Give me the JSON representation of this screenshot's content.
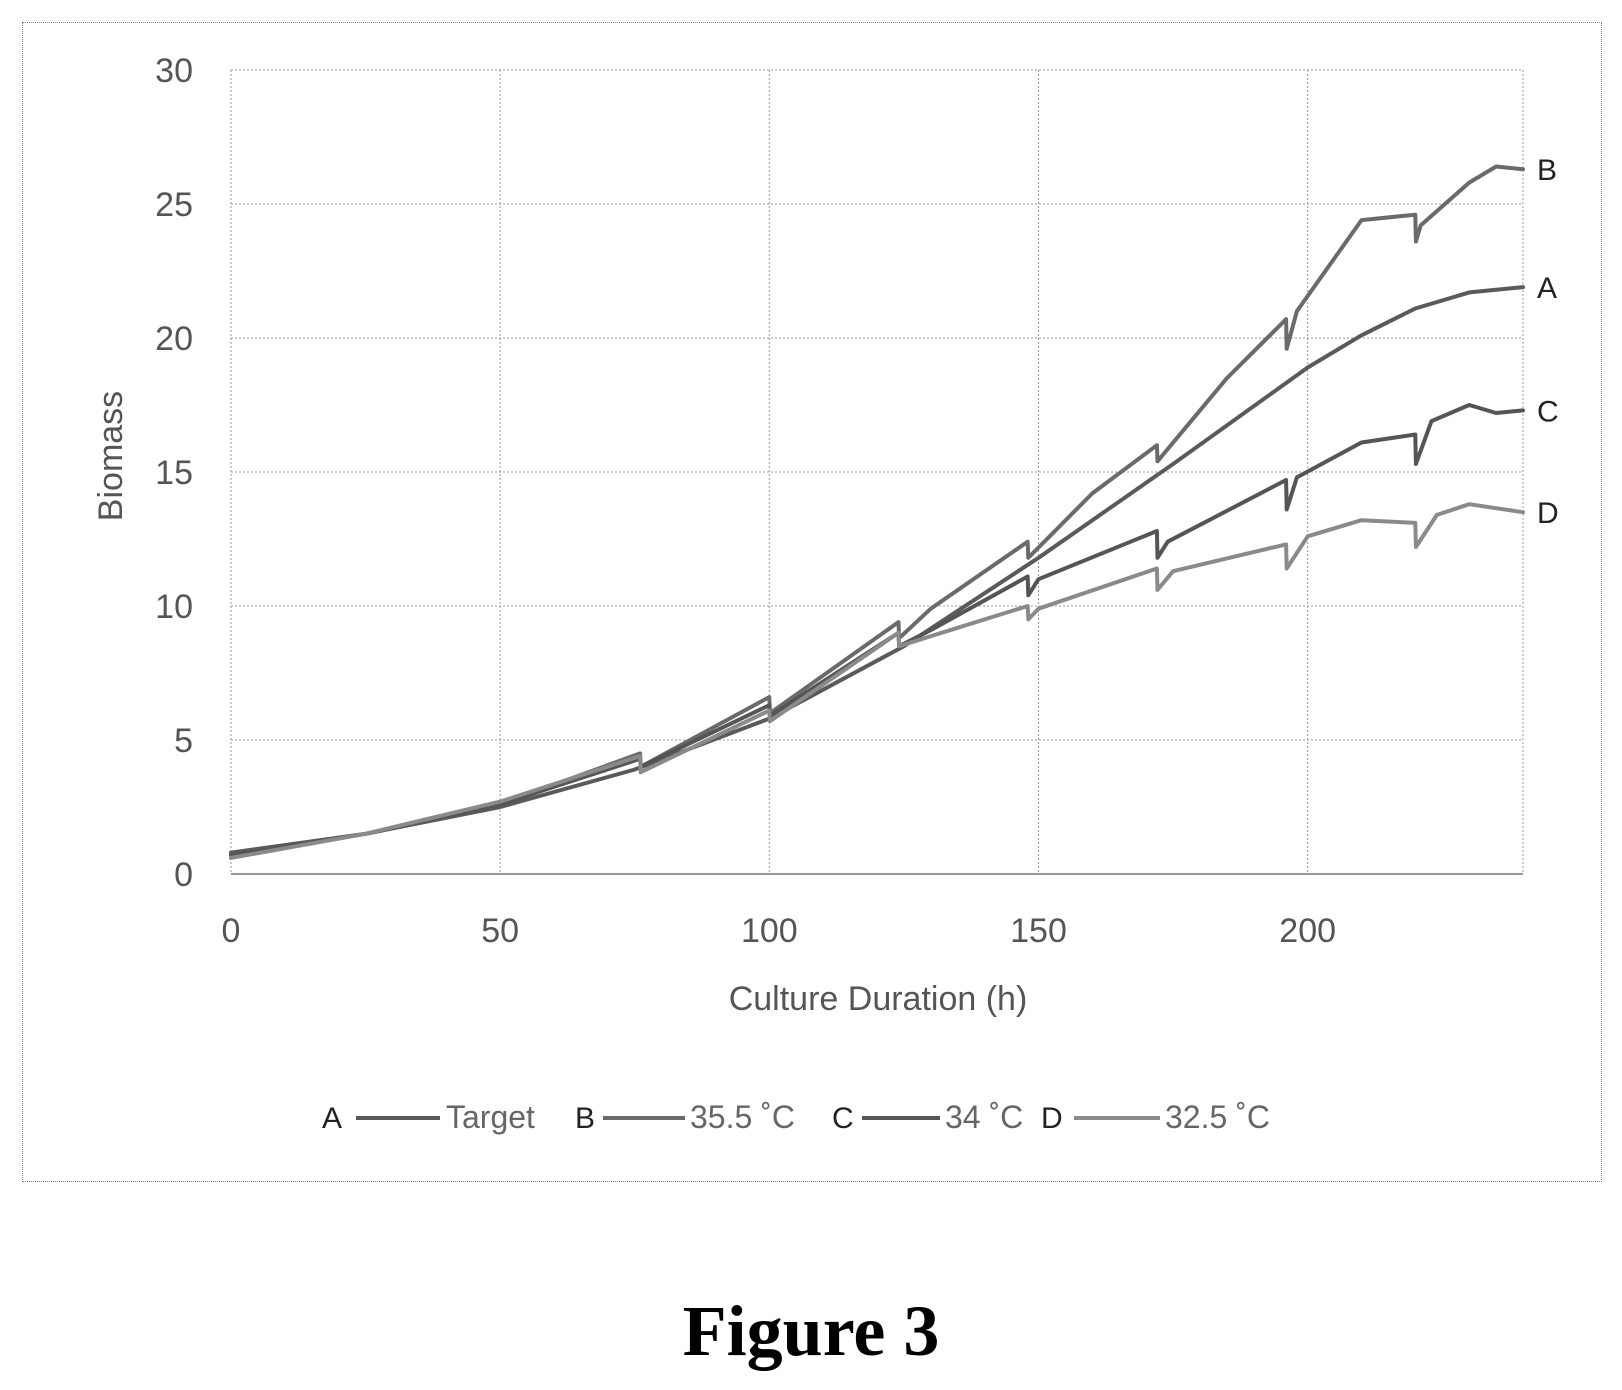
{
  "figure_caption": "Figure 3",
  "chart_data": {
    "type": "line",
    "title": "",
    "xlabel": "Culture Duration (h)",
    "ylabel": "Biomass",
    "xlim": [
      0,
      240
    ],
    "ylim": [
      0,
      30
    ],
    "x_ticks": [
      0,
      50,
      100,
      150,
      200
    ],
    "y_ticks": [
      0,
      5,
      10,
      15,
      20,
      25,
      30
    ],
    "grid": true,
    "legend_position": "bottom",
    "series": [
      {
        "name": "Target",
        "label": "A",
        "color": "#5a5a5a",
        "points": [
          [
            0,
            0.8
          ],
          [
            25,
            1.5
          ],
          [
            50,
            2.5
          ],
          [
            75,
            3.9
          ],
          [
            100,
            5.8
          ],
          [
            125,
            8.5
          ],
          [
            150,
            11.8
          ],
          [
            175,
            15.3
          ],
          [
            200,
            18.9
          ],
          [
            210,
            20.1
          ],
          [
            220,
            21.1
          ],
          [
            230,
            21.7
          ],
          [
            240,
            21.9
          ]
        ]
      },
      {
        "name": "35.5 ˚C",
        "label": "B",
        "color": "#6a6a6a",
        "points": [
          [
            0,
            0.7
          ],
          [
            25,
            1.5
          ],
          [
            50,
            2.6
          ],
          [
            76,
            4.5
          ],
          [
            76.1,
            4.0
          ],
          [
            100,
            6.6
          ],
          [
            100.1,
            6.0
          ],
          [
            124,
            9.4
          ],
          [
            124.1,
            8.8
          ],
          [
            130,
            9.9
          ],
          [
            148,
            12.4
          ],
          [
            148.1,
            11.8
          ],
          [
            160,
            14.2
          ],
          [
            172,
            16.0
          ],
          [
            172.1,
            15.4
          ],
          [
            185,
            18.5
          ],
          [
            196,
            20.7
          ],
          [
            196.1,
            19.6
          ],
          [
            198,
            21.0
          ],
          [
            210,
            24.4
          ],
          [
            220,
            24.6
          ],
          [
            220.1,
            23.6
          ],
          [
            221,
            24.2
          ],
          [
            230,
            25.8
          ],
          [
            235,
            26.4
          ],
          [
            240,
            26.3
          ]
        ]
      },
      {
        "name": "34 ˚C",
        "label": "C",
        "color": "#555555",
        "points": [
          [
            0,
            0.7
          ],
          [
            25,
            1.5
          ],
          [
            50,
            2.6
          ],
          [
            76,
            4.3
          ],
          [
            76.1,
            4.0
          ],
          [
            100,
            6.3
          ],
          [
            100.1,
            5.9
          ],
          [
            124,
            9.0
          ],
          [
            124.1,
            8.5
          ],
          [
            130,
            9.1
          ],
          [
            148,
            11.1
          ],
          [
            148.1,
            10.4
          ],
          [
            150,
            11.0
          ],
          [
            172,
            12.8
          ],
          [
            172.1,
            11.8
          ],
          [
            174,
            12.4
          ],
          [
            196,
            14.7
          ],
          [
            196.1,
            13.6
          ],
          [
            198,
            14.8
          ],
          [
            210,
            16.1
          ],
          [
            220,
            16.4
          ],
          [
            220.1,
            15.3
          ],
          [
            223,
            16.9
          ],
          [
            230,
            17.5
          ],
          [
            235,
            17.2
          ],
          [
            240,
            17.3
          ]
        ]
      },
      {
        "name": "32.5 ˚C",
        "label": "D",
        "color": "#8a8a8a",
        "points": [
          [
            0,
            0.6
          ],
          [
            25,
            1.5
          ],
          [
            50,
            2.7
          ],
          [
            76,
            4.4
          ],
          [
            76.1,
            3.8
          ],
          [
            100,
            6.1
          ],
          [
            100.1,
            5.7
          ],
          [
            124,
            9.0
          ],
          [
            124.1,
            8.5
          ],
          [
            132,
            9.0
          ],
          [
            148,
            10.0
          ],
          [
            148.1,
            9.5
          ],
          [
            150,
            9.9
          ],
          [
            172,
            11.4
          ],
          [
            172.1,
            10.6
          ],
          [
            175,
            11.3
          ],
          [
            196,
            12.3
          ],
          [
            196.1,
            11.4
          ],
          [
            200,
            12.6
          ],
          [
            210,
            13.2
          ],
          [
            220,
            13.1
          ],
          [
            220.1,
            12.2
          ],
          [
            224,
            13.4
          ],
          [
            230,
            13.8
          ],
          [
            240,
            13.5
          ]
        ]
      }
    ]
  }
}
